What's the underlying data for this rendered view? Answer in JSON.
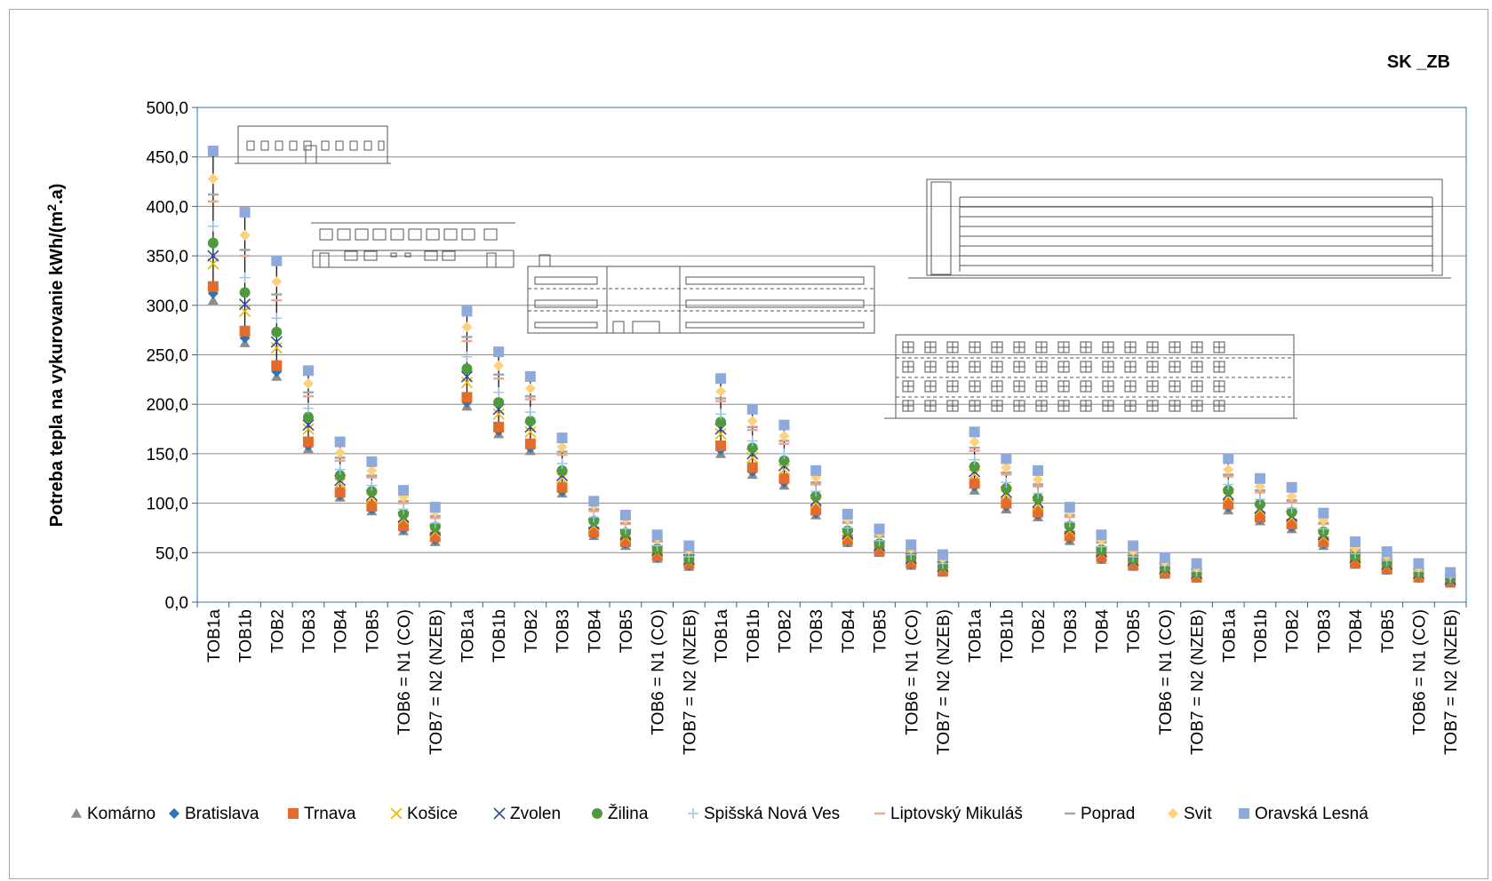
{
  "chart_data": {
    "type": "scatter",
    "title": "SK _ZB",
    "ylabel_main": "Potreba tepla na vykurovanie kWh/(m",
    "ylabel_sup": "2",
    "ylabel_end": ".a)",
    "xlabel": "",
    "ylim": [
      0,
      500
    ],
    "yticks": [
      "0,0",
      "50,0",
      "100,0",
      "150,0",
      "200,0",
      "250,0",
      "300,0",
      "350,0",
      "400,0",
      "450,0",
      "500,0"
    ],
    "grid": true,
    "legend_position": "bottom",
    "categories": [
      "TOB1a",
      "TOB1b",
      "TOB2",
      "TOB3",
      "TOB4",
      "TOB5",
      "TOB6 = N1 (CO)",
      "TOB7 = N2 (NZEB)",
      "TOB1a",
      "TOB1b",
      "TOB2",
      "TOB3",
      "TOB4",
      "TOB5",
      "TOB6 = N1 (CO)",
      "TOB7 = N2 (NZEB)",
      "TOB1a",
      "TOB1b",
      "TOB2",
      "TOB3",
      "TOB4",
      "TOB5",
      "TOB6 = N1 (CO)",
      "TOB7 = N2 (NZEB)",
      "TOB1a",
      "TOB1b",
      "TOB2",
      "TOB3",
      "TOB4",
      "TOB5",
      "TOB6 = N1 (CO)",
      "TOB7 = N2 (NZEB)",
      "TOB1a",
      "TOB1b",
      "TOB2",
      "TOB3",
      "TOB4",
      "TOB5",
      "TOB6 = N1 (CO)",
      "TOB7 = N2 (NZEB)"
    ],
    "series": [
      {
        "name": "Komárno",
        "color": "#8c8c8c",
        "marker": "triangle",
        "values": [
          305,
          262,
          228,
          155,
          106,
          92,
          72,
          61,
          198,
          170,
          153,
          110,
          67,
          57,
          44,
          36,
          150,
          129,
          118,
          88,
          60,
          50,
          37,
          30,
          113,
          94,
          86,
          62,
          43,
          36,
          28,
          24,
          93,
          82,
          74,
          57,
          38,
          32,
          24,
          19
        ]
      },
      {
        "name": "Bratislava",
        "color": "#2e75b6",
        "marker": "diamond",
        "values": [
          312,
          267,
          233,
          158,
          108,
          94,
          74,
          63,
          202,
          173,
          156,
          112,
          69,
          59,
          45,
          37,
          154,
          132,
          121,
          90,
          61,
          51,
          38,
          31,
          117,
          97,
          88,
          64,
          44,
          37,
          29,
          25,
          96,
          84,
          76,
          59,
          39,
          33,
          25,
          20
        ]
      },
      {
        "name": "Trnava",
        "color": "#e36c2c",
        "marker": "square",
        "values": [
          319,
          274,
          239,
          162,
          111,
          97,
          77,
          66,
          207,
          177,
          160,
          116,
          71,
          61,
          47,
          39,
          158,
          136,
          125,
          93,
          63,
          52,
          40,
          32,
          120,
          100,
          91,
          67,
          46,
          38,
          30,
          26,
          99,
          86,
          79,
          61,
          40,
          34,
          26,
          21
        ]
      },
      {
        "name": "Košice",
        "color": "#f0b400",
        "marker": "x",
        "values": [
          342,
          294,
          257,
          175,
          120,
          105,
          84,
          71,
          222,
          190,
          172,
          125,
          77,
          66,
          51,
          42,
          170,
          146,
          134,
          100,
          67,
          56,
          43,
          35,
          129,
          108,
          98,
          72,
          50,
          41,
          33,
          28,
          106,
          93,
          85,
          66,
          44,
          37,
          28,
          23
        ]
      },
      {
        "name": "Zvolen",
        "color": "#2f4da3",
        "marker": "x",
        "values": [
          350,
          301,
          263,
          179,
          123,
          108,
          86,
          73,
          228,
          195,
          177,
          128,
          79,
          68,
          52,
          43,
          175,
          150,
          138,
          103,
          69,
          57,
          44,
          36,
          132,
          111,
          101,
          74,
          51,
          42,
          34,
          29,
          109,
          95,
          87,
          68,
          45,
          38,
          29,
          23
        ]
      },
      {
        "name": "Žilina",
        "color": "#4e9a3c",
        "marker": "circle",
        "values": [
          363,
          313,
          273,
          187,
          128,
          112,
          89,
          76,
          236,
          202,
          183,
          133,
          82,
          70,
          54,
          44,
          182,
          156,
          143,
          107,
          72,
          59,
          46,
          37,
          137,
          115,
          105,
          77,
          53,
          44,
          35,
          30,
          113,
          99,
          91,
          71,
          47,
          40,
          30,
          24
        ]
      },
      {
        "name": "Spišská Nová Ves",
        "color": "#9dc3e6",
        "marker": "plus",
        "values": [
          380,
          328,
          287,
          196,
          134,
          118,
          94,
          80,
          248,
          212,
          192,
          140,
          86,
          74,
          57,
          46,
          190,
          163,
          150,
          112,
          75,
          62,
          48,
          39,
          144,
          121,
          110,
          81,
          56,
          46,
          37,
          31,
          119,
          104,
          95,
          74,
          49,
          42,
          31,
          25
        ]
      },
      {
        "name": "Liptovský Mikuláš",
        "color": "#f4a58c",
        "marker": "dash",
        "values": [
          405,
          350,
          305,
          208,
          143,
          126,
          100,
          85,
          264,
          226,
          205,
          149,
          92,
          79,
          61,
          50,
          203,
          174,
          160,
          119,
          80,
          66,
          51,
          42,
          153,
          129,
          117,
          86,
          60,
          49,
          39,
          33,
          127,
          111,
          101,
          79,
          52,
          44,
          33,
          26
        ]
      },
      {
        "name": "Poprad",
        "color": "#a6a6a6",
        "marker": "dash",
        "values": [
          412,
          356,
          311,
          212,
          146,
          128,
          102,
          87,
          268,
          230,
          208,
          152,
          94,
          80,
          62,
          51,
          206,
          177,
          163,
          121,
          81,
          67,
          52,
          42,
          156,
          131,
          119,
          88,
          61,
          50,
          40,
          34,
          129,
          113,
          103,
          80,
          53,
          45,
          34,
          27
        ]
      },
      {
        "name": "Svit",
        "color": "#ffd17a",
        "marker": "diamond",
        "values": [
          428,
          371,
          324,
          221,
          151,
          133,
          106,
          91,
          278,
          239,
          216,
          157,
          98,
          84,
          65,
          53,
          213,
          183,
          168,
          126,
          84,
          70,
          54,
          44,
          162,
          136,
          124,
          91,
          63,
          52,
          41,
          35,
          134,
          117,
          107,
          83,
          55,
          47,
          35,
          28
        ]
      },
      {
        "name": "Oravská Lesná",
        "color": "#8ea9db",
        "marker": "square",
        "values": [
          456,
          394,
          345,
          234,
          162,
          142,
          113,
          96,
          294,
          253,
          228,
          166,
          102,
          88,
          68,
          57,
          226,
          195,
          179,
          133,
          89,
          74,
          58,
          48,
          172,
          145,
          133,
          96,
          68,
          57,
          45,
          39,
          145,
          125,
          116,
          90,
          61,
          51,
          39,
          30
        ]
      }
    ]
  }
}
